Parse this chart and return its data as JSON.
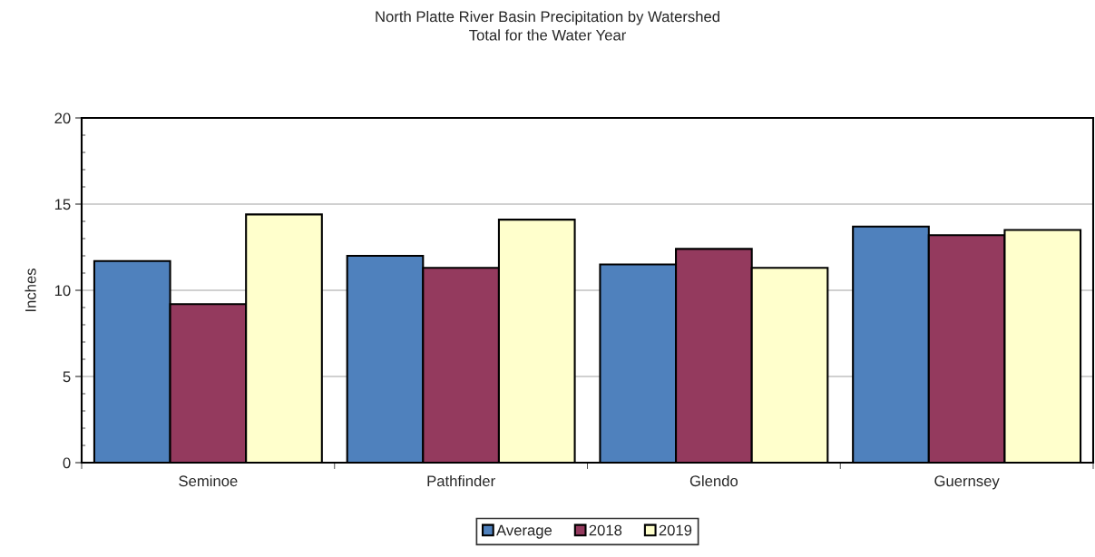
{
  "chart_data": {
    "type": "bar",
    "title": "North Platte River Basin Precipitation by Watershed\nTotal for the Water Year",
    "ylabel": "Inches",
    "categories": [
      "Seminoe",
      "Pathfinder",
      "Glendo",
      "Guernsey"
    ],
    "series": [
      {
        "name": "Average",
        "color": "#4f81bd",
        "values": [
          11.7,
          12.0,
          11.5,
          13.7
        ]
      },
      {
        "name": "2018",
        "color": "#943a5e",
        "values": [
          9.2,
          11.3,
          12.4,
          13.2
        ]
      },
      {
        "name": "2019",
        "color": "#ffffcc",
        "values": [
          14.4,
          14.1,
          11.3,
          13.5
        ]
      }
    ],
    "ylim": [
      0,
      20
    ],
    "yticks": [
      0,
      5,
      10,
      15,
      20
    ],
    "grid": "y",
    "legend": "bottom"
  }
}
